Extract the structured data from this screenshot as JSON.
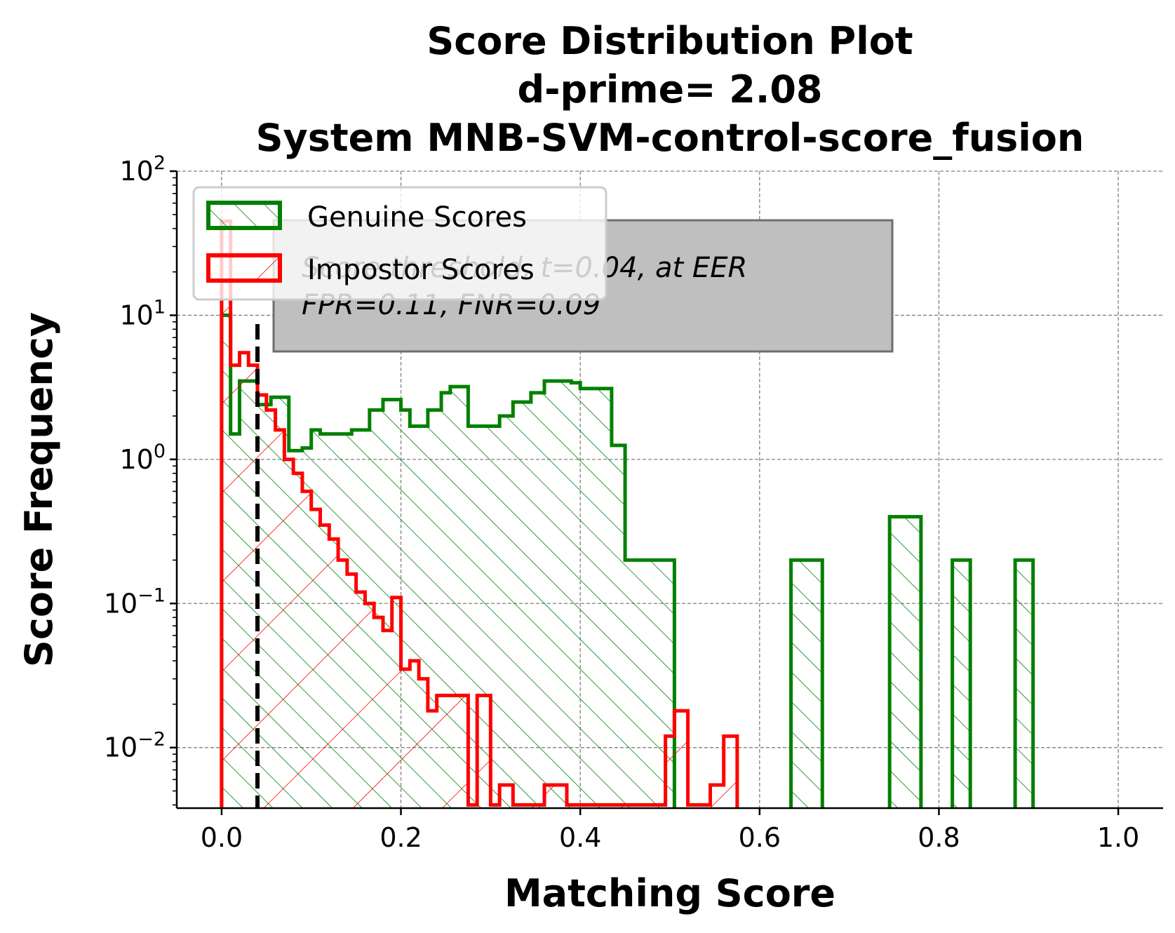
{
  "chart_data": {
    "type": "histogram",
    "title": "Score Distribution Plot",
    "subtitle_lines": [
      "d-prime= 2.08",
      "System MNB-SVM-control-score_fusion"
    ],
    "xlabel": "Matching Score",
    "ylabel": "Score Frequency",
    "xlim": [
      -0.05,
      1.05
    ],
    "ylim": [
      0.0038,
      100
    ],
    "yscale": "log",
    "grid": true,
    "legend_position": "upper-left",
    "x_ticks": [
      "0.0",
      "0.2",
      "0.4",
      "0.6",
      "0.8",
      "1.0"
    ],
    "x_tick_values": [
      0.0,
      0.2,
      0.4,
      0.6,
      0.8,
      1.0
    ],
    "y_ticks": [
      {
        "value": 100,
        "base": "10",
        "exp": "2"
      },
      {
        "value": 10,
        "base": "10",
        "exp": "1"
      },
      {
        "value": 1,
        "base": "10",
        "exp": "0"
      },
      {
        "value": 0.1,
        "base": "10",
        "exp": "−1"
      },
      {
        "value": 0.01,
        "base": "10",
        "exp": "−2"
      }
    ],
    "threshold": 0.04,
    "annotation_lines": [
      "Score threshold, t=0.04, at EER",
      "FPR=0.11, FNR=0.09"
    ],
    "series": [
      {
        "name": "Genuine Scores",
        "color": "#008000",
        "hatch": "forward",
        "bins": [
          [
            0.0,
            0.01,
            10
          ],
          [
            0.01,
            0.02,
            1.5
          ],
          [
            0.02,
            0.04,
            3.5
          ],
          [
            0.04,
            0.055,
            2.4
          ],
          [
            0.055,
            0.075,
            2.7
          ],
          [
            0.075,
            0.09,
            1.15
          ],
          [
            0.09,
            0.1,
            1.2
          ],
          [
            0.1,
            0.11,
            1.6
          ],
          [
            0.11,
            0.145,
            1.5
          ],
          [
            0.145,
            0.165,
            1.6
          ],
          [
            0.165,
            0.18,
            2.2
          ],
          [
            0.18,
            0.2,
            2.6
          ],
          [
            0.2,
            0.21,
            2.2
          ],
          [
            0.21,
            0.23,
            1.7
          ],
          [
            0.23,
            0.245,
            2.2
          ],
          [
            0.245,
            0.255,
            2.9
          ],
          [
            0.255,
            0.275,
            3.2
          ],
          [
            0.275,
            0.31,
            1.7
          ],
          [
            0.31,
            0.325,
            2.0
          ],
          [
            0.325,
            0.345,
            2.5
          ],
          [
            0.345,
            0.36,
            2.9
          ],
          [
            0.36,
            0.39,
            3.5
          ],
          [
            0.39,
            0.4,
            3.4
          ],
          [
            0.4,
            0.435,
            3.1
          ],
          [
            0.435,
            0.45,
            1.25
          ],
          [
            0.45,
            0.505,
            0.2
          ],
          [
            0.635,
            0.67,
            0.2
          ],
          [
            0.745,
            0.78,
            0.4
          ],
          [
            0.815,
            0.835,
            0.2
          ],
          [
            0.885,
            0.905,
            0.2
          ]
        ]
      },
      {
        "name": "Impostor Scores",
        "color": "#ff0000",
        "hatch": "backward",
        "bins": [
          [
            0.0,
            0.01,
            45
          ],
          [
            0.01,
            0.02,
            4.5
          ],
          [
            0.02,
            0.03,
            5.5
          ],
          [
            0.03,
            0.04,
            4.5
          ],
          [
            0.04,
            0.05,
            2.8
          ],
          [
            0.05,
            0.06,
            2.2
          ],
          [
            0.06,
            0.07,
            1.6
          ],
          [
            0.07,
            0.08,
            1.0
          ],
          [
            0.08,
            0.09,
            0.8
          ],
          [
            0.09,
            0.1,
            0.6
          ],
          [
            0.1,
            0.11,
            0.45
          ],
          [
            0.11,
            0.12,
            0.35
          ],
          [
            0.12,
            0.13,
            0.28
          ],
          [
            0.13,
            0.14,
            0.2
          ],
          [
            0.14,
            0.15,
            0.16
          ],
          [
            0.15,
            0.16,
            0.12
          ],
          [
            0.16,
            0.17,
            0.1
          ],
          [
            0.17,
            0.18,
            0.08
          ],
          [
            0.18,
            0.19,
            0.065
          ],
          [
            0.19,
            0.2,
            0.11
          ],
          [
            0.2,
            0.21,
            0.035
          ],
          [
            0.21,
            0.22,
            0.04
          ],
          [
            0.22,
            0.23,
            0.03
          ],
          [
            0.23,
            0.24,
            0.018
          ],
          [
            0.24,
            0.275,
            0.023
          ],
          [
            0.275,
            0.285,
            0.004
          ],
          [
            0.285,
            0.3,
            0.023
          ],
          [
            0.3,
            0.31,
            0.004
          ],
          [
            0.31,
            0.325,
            0.0055
          ],
          [
            0.325,
            0.36,
            0.004
          ],
          [
            0.36,
            0.385,
            0.0055
          ],
          [
            0.385,
            0.495,
            0.004
          ],
          [
            0.495,
            0.505,
            0.012
          ],
          [
            0.505,
            0.52,
            0.018
          ],
          [
            0.52,
            0.545,
            0.004
          ],
          [
            0.545,
            0.56,
            0.0055
          ],
          [
            0.56,
            0.575,
            0.012
          ]
        ]
      }
    ]
  }
}
